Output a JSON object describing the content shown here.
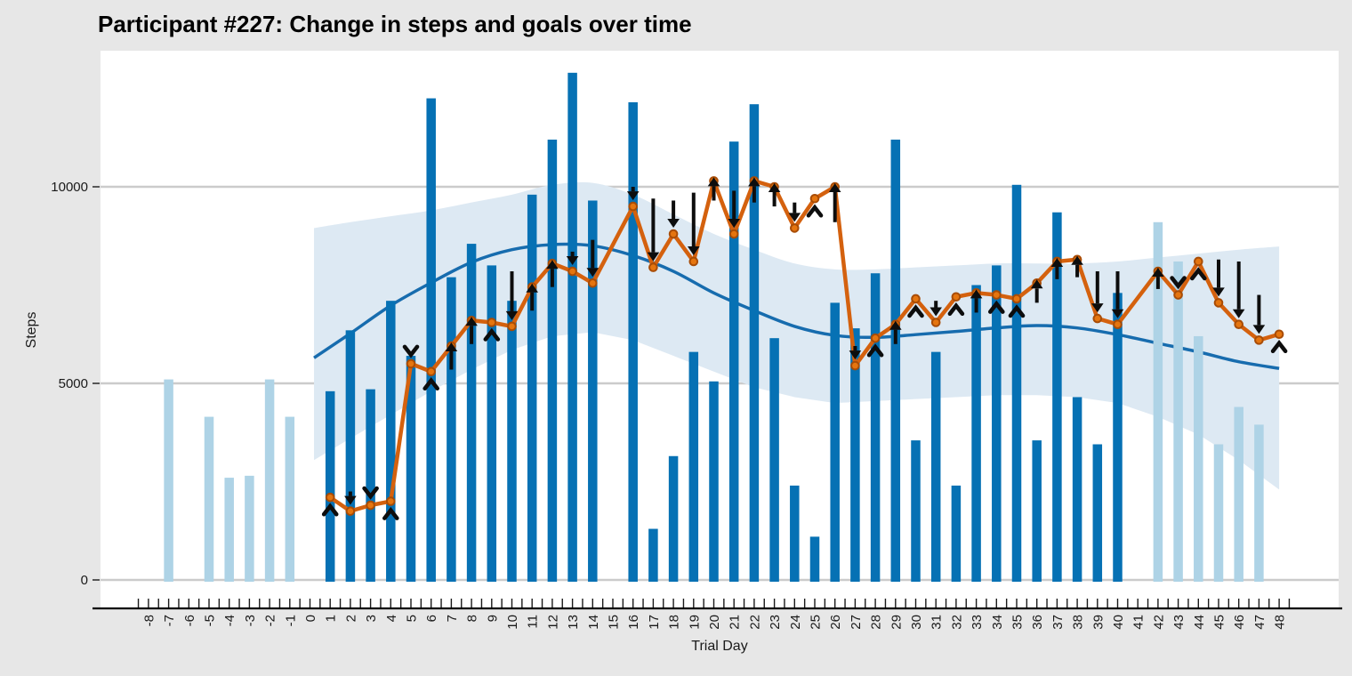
{
  "chart_data": {
    "type": "bar",
    "title": "Participant #227: Change in steps and goals over time",
    "xlabel": "Trial Day",
    "ylabel": "Steps",
    "x_tick_range": [
      -8,
      48
    ],
    "y_ticks": [
      0,
      5000,
      10000
    ],
    "y_tick_labels": [
      "0",
      "5000",
      "10000"
    ],
    "x_domain": [
      -10.4,
      51.0
    ],
    "y_domain": [
      -250,
      13460
    ],
    "grid": "horizontal-only",
    "legend": "none",
    "bars_steps": [
      {
        "day": -7,
        "steps": 5100,
        "phase": "pre"
      },
      {
        "day": -5,
        "steps": 4150,
        "phase": "pre"
      },
      {
        "day": -4,
        "steps": 2600,
        "phase": "pre"
      },
      {
        "day": -3,
        "steps": 2650,
        "phase": "pre"
      },
      {
        "day": -2,
        "steps": 5100,
        "phase": "pre"
      },
      {
        "day": -1,
        "steps": 4150,
        "phase": "pre"
      },
      {
        "day": 1,
        "steps": 4800,
        "phase": "trial"
      },
      {
        "day": 2,
        "steps": 6350,
        "phase": "trial"
      },
      {
        "day": 3,
        "steps": 4850,
        "phase": "trial"
      },
      {
        "day": 4,
        "steps": 7100,
        "phase": "trial"
      },
      {
        "day": 5,
        "steps": 5700,
        "phase": "trial"
      },
      {
        "day": 6,
        "steps": 12250,
        "phase": "trial"
      },
      {
        "day": 7,
        "steps": 7700,
        "phase": "trial"
      },
      {
        "day": 8,
        "steps": 8550,
        "phase": "trial"
      },
      {
        "day": 9,
        "steps": 8000,
        "phase": "trial"
      },
      {
        "day": 10,
        "steps": 7100,
        "phase": "trial"
      },
      {
        "day": 11,
        "steps": 9800,
        "phase": "trial"
      },
      {
        "day": 12,
        "steps": 11200,
        "phase": "trial"
      },
      {
        "day": 13,
        "steps": 12900,
        "phase": "trial"
      },
      {
        "day": 14,
        "steps": 9650,
        "phase": "trial"
      },
      {
        "day": 16,
        "steps": 12150,
        "phase": "trial"
      },
      {
        "day": 17,
        "steps": 1300,
        "phase": "trial"
      },
      {
        "day": 18,
        "steps": 3150,
        "phase": "trial"
      },
      {
        "day": 19,
        "steps": 5800,
        "phase": "trial"
      },
      {
        "day": 20,
        "steps": 5050,
        "phase": "trial"
      },
      {
        "day": 21,
        "steps": 11150,
        "phase": "trial"
      },
      {
        "day": 22,
        "steps": 12100,
        "phase": "trial"
      },
      {
        "day": 23,
        "steps": 6150,
        "phase": "trial"
      },
      {
        "day": 24,
        "steps": 2400,
        "phase": "trial"
      },
      {
        "day": 25,
        "steps": 1100,
        "phase": "trial"
      },
      {
        "day": 26,
        "steps": 7050,
        "phase": "trial"
      },
      {
        "day": 27,
        "steps": 6400,
        "phase": "trial"
      },
      {
        "day": 28,
        "steps": 7800,
        "phase": "trial"
      },
      {
        "day": 29,
        "steps": 11200,
        "phase": "trial"
      },
      {
        "day": 30,
        "steps": 3550,
        "phase": "trial"
      },
      {
        "day": 31,
        "steps": 5800,
        "phase": "trial"
      },
      {
        "day": 32,
        "steps": 2400,
        "phase": "trial"
      },
      {
        "day": 33,
        "steps": 7500,
        "phase": "trial"
      },
      {
        "day": 34,
        "steps": 8000,
        "phase": "trial"
      },
      {
        "day": 35,
        "steps": 10050,
        "phase": "trial"
      },
      {
        "day": 36,
        "steps": 3550,
        "phase": "trial"
      },
      {
        "day": 37,
        "steps": 9350,
        "phase": "trial"
      },
      {
        "day": 38,
        "steps": 4650,
        "phase": "trial"
      },
      {
        "day": 39,
        "steps": 3450,
        "phase": "trial"
      },
      {
        "day": 40,
        "steps": 7300,
        "phase": "trial"
      },
      {
        "day": 42,
        "steps": 9100,
        "phase": "post"
      },
      {
        "day": 43,
        "steps": 8100,
        "phase": "post"
      },
      {
        "day": 44,
        "steps": 6200,
        "phase": "post"
      },
      {
        "day": 45,
        "steps": 3450,
        "phase": "post"
      },
      {
        "day": 46,
        "steps": 4400,
        "phase": "post"
      },
      {
        "day": 47,
        "steps": 3950,
        "phase": "post"
      }
    ],
    "goal_line": [
      {
        "day": 1,
        "goal": 2100,
        "arrow": "up",
        "len": 400
      },
      {
        "day": 2,
        "goal": 1750,
        "arrow": "down",
        "len": 500
      },
      {
        "day": 3,
        "goal": 1900,
        "arrow": "down",
        "len": 400
      },
      {
        "day": 4,
        "goal": 2000,
        "arrow": "up",
        "len": 400
      },
      {
        "day": 5,
        "goal": 5500,
        "arrow": "down",
        "len": 400
      },
      {
        "day": 6,
        "goal": 5300,
        "arrow": "up",
        "len": 400
      },
      {
        "day": 7,
        "goal": 5950,
        "arrow": "up",
        "len": 600
      },
      {
        "day": 8,
        "goal": 6600,
        "arrow": "up",
        "len": 600
      },
      {
        "day": 9,
        "goal": 6550,
        "arrow": "up",
        "len": 400
      },
      {
        "day": 10,
        "goal": 6450,
        "arrow": "down",
        "len": 1400
      },
      {
        "day": 11,
        "goal": 7450,
        "arrow": "up",
        "len": 600
      },
      {
        "day": 12,
        "goal": 8050,
        "arrow": "up",
        "len": 600
      },
      {
        "day": 13,
        "goal": 7850,
        "arrow": "down",
        "len": 500
      },
      {
        "day": 14,
        "goal": 7550,
        "arrow": "down",
        "len": 1100
      },
      {
        "day": 16,
        "goal": 9500,
        "arrow": "down",
        "len": 500
      },
      {
        "day": 17,
        "goal": 7950,
        "arrow": "down",
        "len": 1750
      },
      {
        "day": 18,
        "goal": 8800,
        "arrow": "down",
        "len": 850
      },
      {
        "day": 19,
        "goal": 8100,
        "arrow": "down",
        "len": 1750
      },
      {
        "day": 20,
        "goal": 10150,
        "arrow": "up",
        "len": 500
      },
      {
        "day": 21,
        "goal": 8800,
        "arrow": "down",
        "len": 1100
      },
      {
        "day": 22,
        "goal": 10150,
        "arrow": "up",
        "len": 550
      },
      {
        "day": 23,
        "goal": 10000,
        "arrow": "up",
        "len": 500
      },
      {
        "day": 24,
        "goal": 8950,
        "arrow": "down",
        "len": 650
      },
      {
        "day": 25,
        "goal": 9700,
        "arrow": "up",
        "len": 400
      },
      {
        "day": 26,
        "goal": 10000,
        "arrow": "up",
        "len": 900
      },
      {
        "day": 27,
        "goal": 5450,
        "arrow": "down",
        "len": 500
      },
      {
        "day": 28,
        "goal": 6150,
        "arrow": "up",
        "len": 400
      },
      {
        "day": 29,
        "goal": 6500,
        "arrow": "up",
        "len": 500
      },
      {
        "day": 30,
        "goal": 7150,
        "arrow": "up",
        "len": 400
      },
      {
        "day": 31,
        "goal": 6550,
        "arrow": "down",
        "len": 550
      },
      {
        "day": 32,
        "goal": 7200,
        "arrow": "up",
        "len": 400
      },
      {
        "day": 33,
        "goal": 7300,
        "arrow": "up",
        "len": 500
      },
      {
        "day": 34,
        "goal": 7250,
        "arrow": "up",
        "len": 400
      },
      {
        "day": 35,
        "goal": 7150,
        "arrow": "up",
        "len": 400
      },
      {
        "day": 36,
        "goal": 7550,
        "arrow": "up",
        "len": 500
      },
      {
        "day": 37,
        "goal": 8100,
        "arrow": "up",
        "len": 450
      },
      {
        "day": 38,
        "goal": 8150,
        "arrow": "up",
        "len": 450
      },
      {
        "day": 39,
        "goal": 6650,
        "arrow": "down",
        "len": 1200
      },
      {
        "day": 40,
        "goal": 6500,
        "arrow": "down",
        "len": 1350
      },
      {
        "day": 42,
        "goal": 7850,
        "arrow": "up",
        "len": 450
      },
      {
        "day": 43,
        "goal": 7250,
        "arrow": "down",
        "len": 400
      },
      {
        "day": 44,
        "goal": 8100,
        "arrow": "up",
        "len": 400
      },
      {
        "day": 45,
        "goal": 7050,
        "arrow": "down",
        "len": 1100
      },
      {
        "day": 46,
        "goal": 6500,
        "arrow": "down",
        "len": 1600
      },
      {
        "day": 47,
        "goal": 6100,
        "arrow": "down",
        "len": 1150
      },
      {
        "day": 48,
        "goal": 6250,
        "arrow": "up",
        "len": 400
      }
    ],
    "trend_smooth": {
      "days": [
        0.2,
        2,
        4,
        6,
        8,
        10,
        12,
        14,
        16,
        18,
        20,
        22,
        24,
        26,
        28,
        30,
        32,
        34,
        36,
        38,
        40,
        42,
        44,
        46,
        48
      ],
      "fit": [
        5650,
        6270,
        6980,
        7560,
        8080,
        8400,
        8530,
        8500,
        8250,
        7850,
        7300,
        6850,
        6450,
        6220,
        6170,
        6240,
        6320,
        6410,
        6470,
        6410,
        6240,
        6020,
        5800,
        5550,
        5380
      ],
      "lower": [
        3050,
        3600,
        4200,
        4800,
        5350,
        5850,
        6200,
        6300,
        6100,
        5700,
        5300,
        4900,
        4650,
        4500,
        4550,
        4600,
        4650,
        4700,
        4700,
        4650,
        4500,
        4150,
        3700,
        3050,
        2300
      ],
      "upper": [
        8950,
        9100,
        9250,
        9400,
        9600,
        9800,
        10050,
        10100,
        9800,
        9300,
        8800,
        8400,
        8050,
        7900,
        7900,
        7950,
        8000,
        8050,
        8050,
        8050,
        8100,
        8200,
        8300,
        8400,
        8480
      ]
    },
    "colors": {
      "figure_bg": "#e7e7e7",
      "panel_bg": "#ffffff",
      "gridline": "#cbcbcb",
      "bar_trial": "#0671b4",
      "bar_offtrial": "#aed3e6",
      "ci_band": "#dde9f3",
      "trend_line": "#176cae",
      "goal_line": "#d4610e",
      "goal_point_fill": "#e5750f",
      "goal_point_stroke": "#a84c06",
      "arrow": "#0d0d0d",
      "axis_text": "#1a1a1a",
      "axis_line": "#000000"
    }
  }
}
